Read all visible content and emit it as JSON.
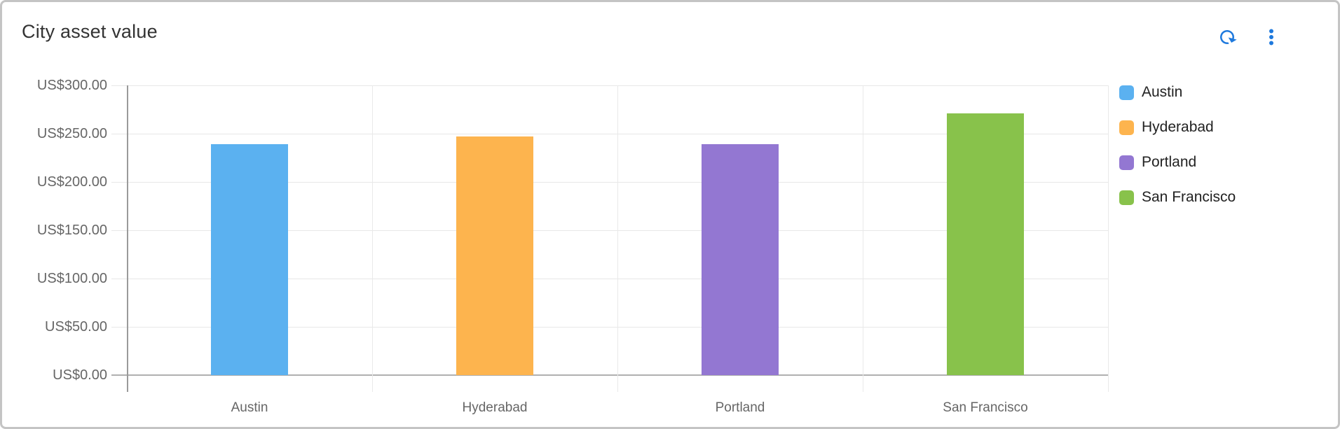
{
  "header": {
    "title": "City asset value"
  },
  "colors": {
    "accent": "#1e79dd",
    "title_text": "#333333",
    "axis_label": "#666666",
    "legend_label": "#222222",
    "gridline": "#e7e7e7",
    "baseline": "#b0b0b0",
    "axis_line": "#9a9a9a",
    "card_border": "#c4c4c4"
  },
  "chart_data": {
    "type": "bar",
    "title": "City asset value",
    "categories": [
      "Austin",
      "Hyderabad",
      "Portland",
      "San Francisco"
    ],
    "values": [
      239,
      247,
      239,
      271
    ],
    "bar_colors": [
      "#5bb1f0",
      "#fdb44e",
      "#9377d2",
      "#88c24b"
    ],
    "currency_prefix": "US$",
    "xlabel": "",
    "ylabel": "",
    "ylim": [
      0,
      300
    ],
    "y_tick_step": 50,
    "y_ticks": [
      {
        "value": 0,
        "label": "US$0.00"
      },
      {
        "value": 50,
        "label": "US$50.00"
      },
      {
        "value": 100,
        "label": "US$100.00"
      },
      {
        "value": 150,
        "label": "US$150.00"
      },
      {
        "value": 200,
        "label": "US$200.00"
      },
      {
        "value": 250,
        "label": "US$250.00"
      },
      {
        "value": 300,
        "label": "US$300.00"
      }
    ],
    "grid": true,
    "legend_position": "right",
    "legend": [
      {
        "label": "Austin",
        "color": "#5bb1f0"
      },
      {
        "label": "Hyderabad",
        "color": "#fdb44e"
      },
      {
        "label": "Portland",
        "color": "#9377d2"
      },
      {
        "label": "San Francisco",
        "color": "#88c24b"
      }
    ]
  }
}
